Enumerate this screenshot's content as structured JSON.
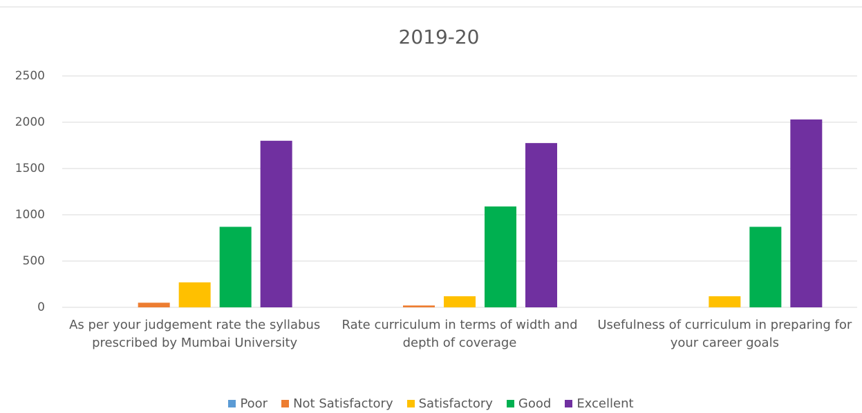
{
  "chart_data": {
    "type": "bar",
    "title": "2019-20",
    "categories": [
      "As per your judgement rate the syllabus prescribed by Mumbai University",
      "Rate curriculum in terms of width and depth of coverage",
      "Usefulness of curriculum in preparing for your career goals"
    ],
    "series": [
      {
        "name": "Poor",
        "color": "#5b9bd5",
        "values": [
          0,
          0,
          0
        ]
      },
      {
        "name": "Not Satisfactory",
        "color": "#ed7d31",
        "values": [
          50,
          20,
          0
        ]
      },
      {
        "name": "Satisfactory",
        "color": "#ffc000",
        "values": [
          270,
          120,
          120
        ]
      },
      {
        "name": "Good",
        "color": "#00b050",
        "values": [
          870,
          1090,
          870
        ]
      },
      {
        "name": "Excellent",
        "color": "#7030a0",
        "values": [
          1800,
          1775,
          2030
        ]
      }
    ],
    "ylim": [
      0,
      2500
    ],
    "yticks": [
      0,
      500,
      1000,
      1500,
      2000,
      2500
    ],
    "grid": true,
    "legend": "bottom"
  }
}
